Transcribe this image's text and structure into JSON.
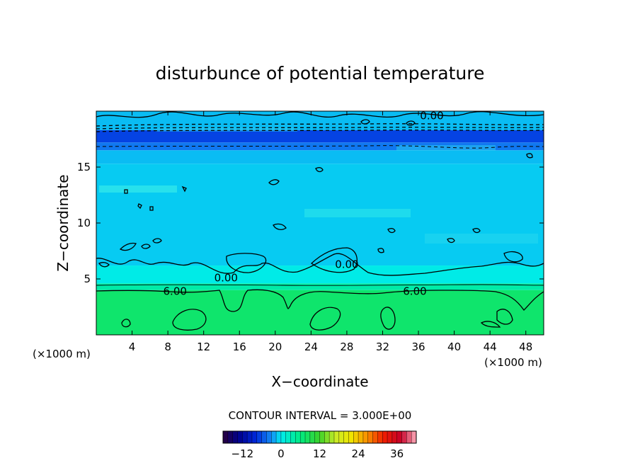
{
  "chart_data": {
    "type": "contour",
    "title": "disturbunce of potential temperature",
    "xlabel": "X−coordinate",
    "ylabel": "Z−coordinate",
    "x_unit": "(×1000 m)",
    "y_unit": "(×1000 m)",
    "xlim": [
      0,
      50
    ],
    "ylim": [
      0,
      20
    ],
    "x_ticks": [
      4,
      8,
      12,
      16,
      20,
      24,
      28,
      32,
      36,
      40,
      44,
      48
    ],
    "x_tick_labels": [
      "4",
      "8",
      "12",
      "16",
      "20",
      "24",
      "28",
      "32",
      "36",
      "40",
      "44",
      "48"
    ],
    "y_ticks": [
      5,
      10,
      15
    ],
    "y_tick_labels": [
      "5",
      "10",
      "15"
    ],
    "contour_interval_text": "CONTOUR INTERVAL = 3.000E+00",
    "contour_labels": [
      {
        "text": "0.00",
        "x": 37.5,
        "z": 19.6
      },
      {
        "text": "0.00",
        "x": 14.5,
        "z": 5.1
      },
      {
        "text": "0.00",
        "x": 28.0,
        "z": 6.3
      },
      {
        "text": "6.00",
        "x": 8.8,
        "z": 3.9
      },
      {
        "text": "6.00",
        "x": 35.6,
        "z": 3.9
      }
    ],
    "fill_bands": [
      {
        "z0": 18.3,
        "z1": 20.0,
        "value": -1.5
      },
      {
        "z0": 17.2,
        "z1": 18.3,
        "value": -6.5
      },
      {
        "z0": 16.5,
        "z1": 17.2,
        "value": -4.0
      },
      {
        "z0": 15.3,
        "z1": 16.5,
        "value": -1.5
      },
      {
        "z0": 6.2,
        "z1": 15.3,
        "value": -1.0
      },
      {
        "z0": 4.6,
        "z1": 6.2,
        "value": 0.5
      },
      {
        "z0": 4.0,
        "z1": 4.6,
        "value": 4.0
      },
      {
        "z0": 0.0,
        "z1": 4.0,
        "value": 7.5
      }
    ],
    "colorbar": {
      "min": -18,
      "max": 42,
      "ticks": [
        -12,
        0,
        12,
        24,
        36
      ],
      "tick_labels": [
        "−12",
        "0",
        "12",
        "24",
        "36"
      ]
    }
  }
}
